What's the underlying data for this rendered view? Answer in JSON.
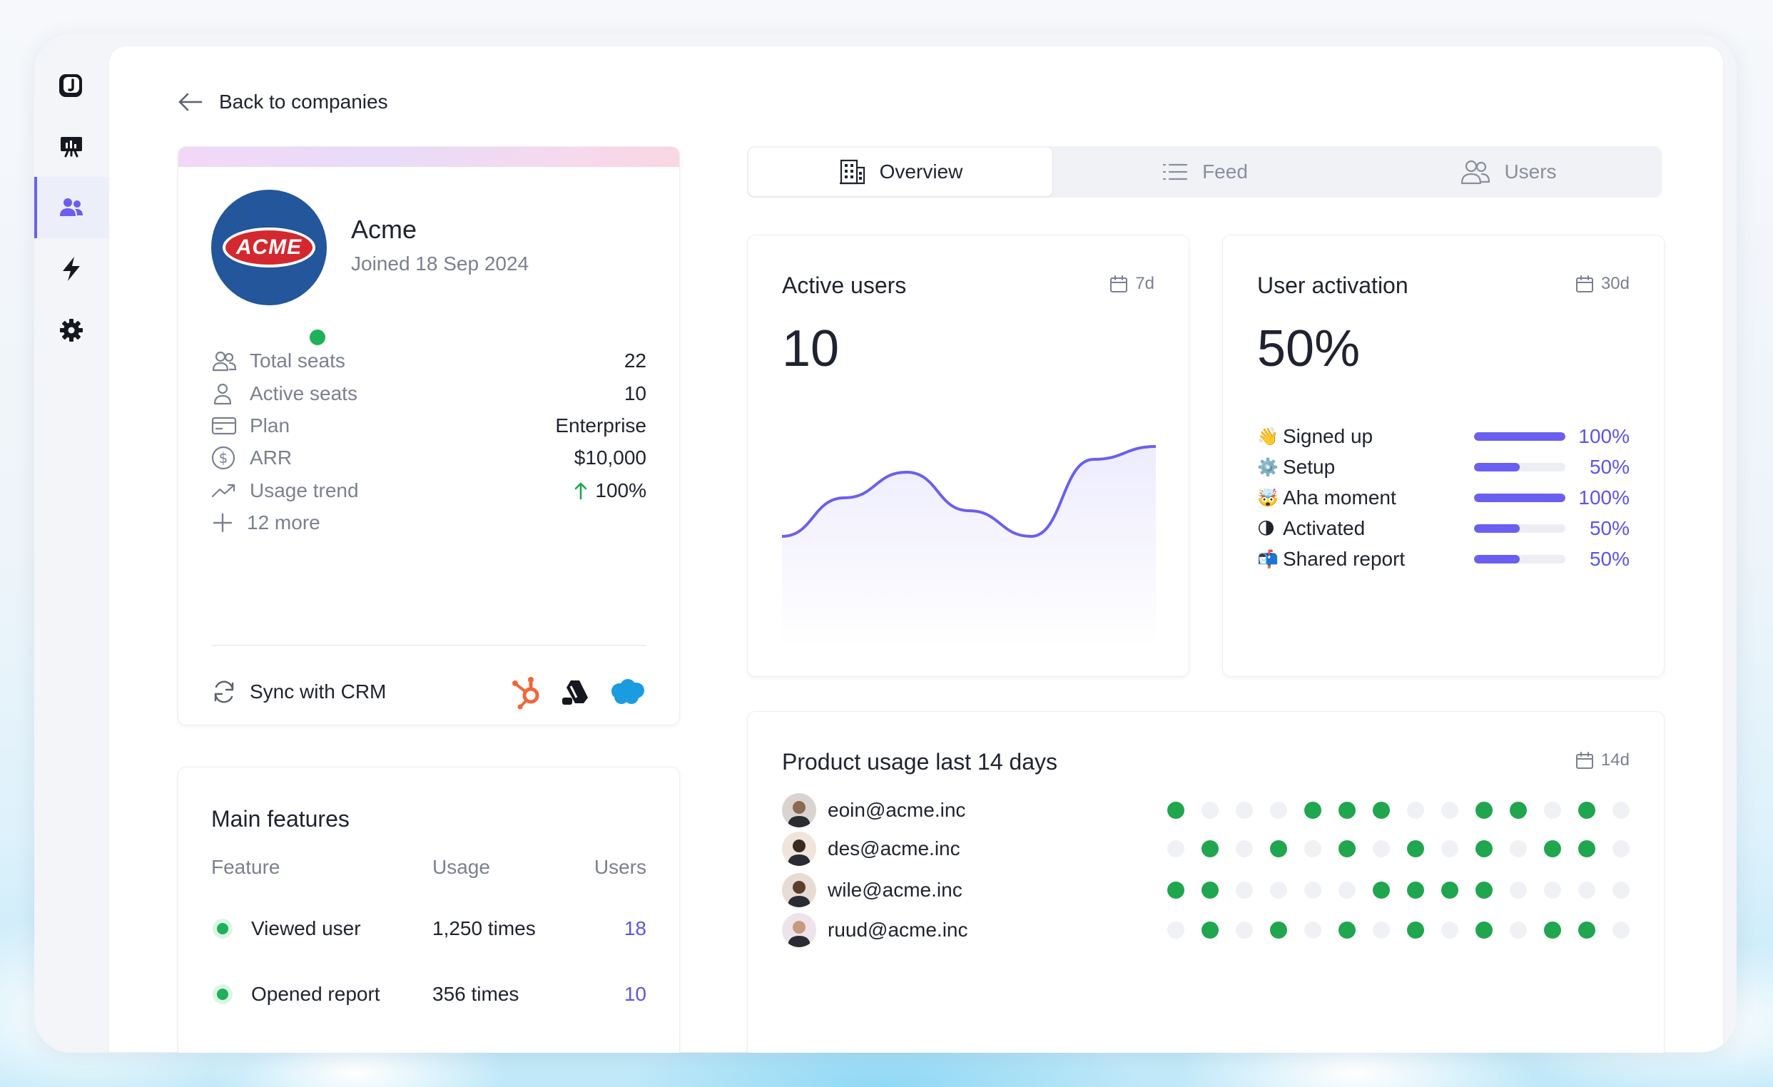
{
  "sidebar": {
    "items": [
      {
        "name": "logo-icon"
      },
      {
        "name": "dashboard-icon"
      },
      {
        "name": "companies-icon",
        "active": true
      },
      {
        "name": "lightning-icon"
      },
      {
        "name": "settings-icon"
      }
    ]
  },
  "back_link": "Back to companies",
  "company": {
    "name": "Acme",
    "logo_text": "ACME",
    "joined": "Joined 18 Sep 2024",
    "attributes": [
      {
        "icon": "users-icon",
        "label": "Total seats",
        "value": "22"
      },
      {
        "icon": "user-icon",
        "label": "Active seats",
        "value": "10"
      },
      {
        "icon": "credit-card-icon",
        "label": "Plan",
        "value": "Enterprise"
      },
      {
        "icon": "dollar-icon",
        "label": "ARR",
        "value": "$10,000"
      },
      {
        "icon": "trend-icon",
        "label": "Usage trend",
        "value": "100%"
      }
    ],
    "more": "12 more",
    "sync_label": "Sync with CRM"
  },
  "features": {
    "title": "Main features",
    "headers": {
      "feature": "Feature",
      "usage": "Usage",
      "users": "Users"
    },
    "rows": [
      {
        "feature": "Viewed user",
        "usage": "1,250 times",
        "users": "18"
      },
      {
        "feature": "Opened report",
        "usage": "356 times",
        "users": "10"
      }
    ]
  },
  "tabs": [
    {
      "label": "Overview",
      "icon": "building-icon",
      "active": true
    },
    {
      "label": "Feed",
      "icon": "list-icon",
      "active": false
    },
    {
      "label": "Users",
      "icon": "users-icon",
      "active": false
    }
  ],
  "active_users": {
    "title": "Active users",
    "period": "7d",
    "value": "10"
  },
  "chart_data": {
    "type": "area",
    "x": [
      0,
      1,
      2,
      3,
      4,
      5,
      6
    ],
    "y": [
      2,
      5,
      7,
      4,
      2,
      8,
      9
    ],
    "title": "",
    "xlabel": "",
    "ylabel": "",
    "grid": false,
    "color": "#6a5ff0"
  },
  "activation": {
    "title": "User activation",
    "period": "30d",
    "value": "50%",
    "steps": [
      {
        "emoji": "👋",
        "label": "Signed up",
        "pct": "100%",
        "fraction": 1.0
      },
      {
        "emoji": "⚙️",
        "label": "Setup",
        "pct": "50%",
        "fraction": 0.5
      },
      {
        "emoji": "🤯",
        "label": "Aha moment",
        "pct": "100%",
        "fraction": 1.0
      },
      {
        "emoji": "🌗",
        "label": "Activated",
        "pct": "50%",
        "fraction": 0.5
      },
      {
        "emoji": "📬",
        "label": "Shared report",
        "pct": "50%",
        "fraction": 0.5
      }
    ]
  },
  "usage": {
    "title": "Product usage last 14 days",
    "period": "14d",
    "users": [
      {
        "email": "eoin@acme.inc",
        "days": [
          1,
          0,
          0,
          0,
          1,
          1,
          1,
          0,
          0,
          1,
          1,
          0,
          1,
          0
        ]
      },
      {
        "email": "des@acme.inc",
        "days": [
          0,
          1,
          0,
          1,
          0,
          1,
          0,
          1,
          0,
          1,
          0,
          1,
          1,
          0
        ]
      },
      {
        "email": "wile@acme.inc",
        "days": [
          1,
          1,
          0,
          0,
          0,
          0,
          1,
          1,
          1,
          1,
          0,
          0,
          0,
          0
        ]
      },
      {
        "email": "ruud@acme.inc",
        "days": [
          0,
          1,
          0,
          1,
          0,
          1,
          0,
          1,
          0,
          1,
          0,
          1,
          1,
          0
        ]
      }
    ]
  },
  "colors": {
    "accent": "#6a5ff0",
    "green": "#1fa64e",
    "brand_blue": "#23569a",
    "brand_red": "#d3282f"
  }
}
